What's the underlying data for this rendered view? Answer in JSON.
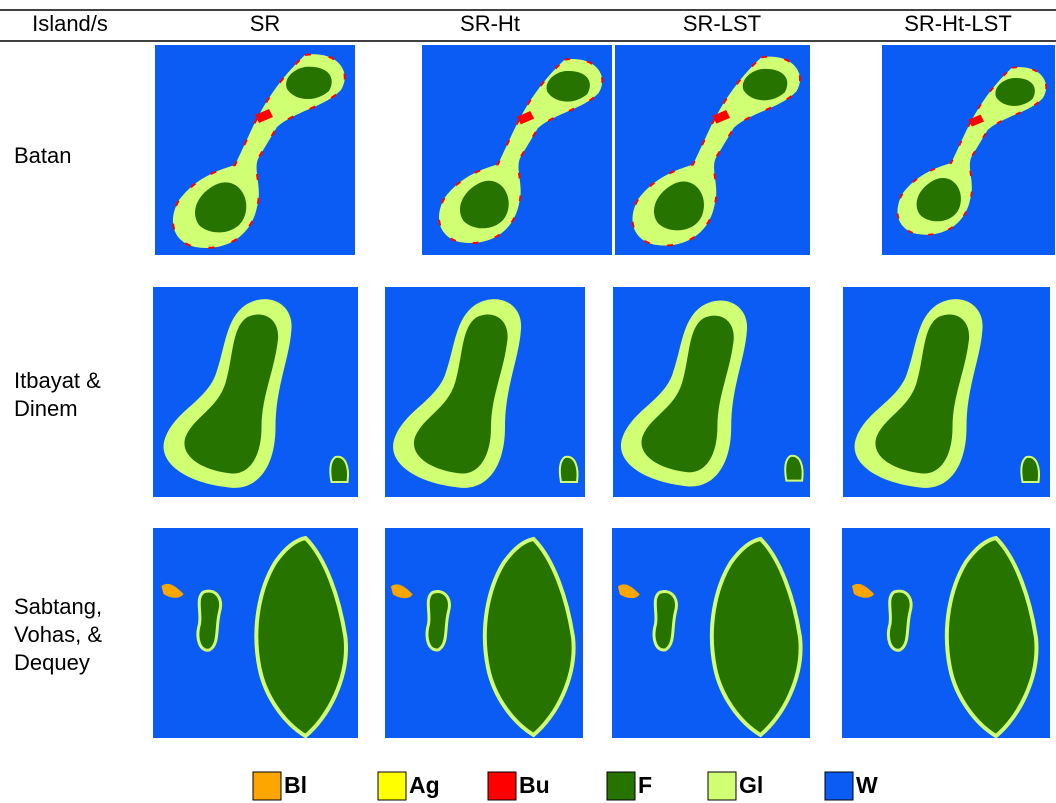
{
  "header": {
    "columns": [
      "Island/s",
      "SR",
      "SR-Ht",
      "SR-LST",
      "SR-Ht-LST"
    ]
  },
  "rows": [
    {
      "label_lines": [
        "Batan"
      ]
    },
    {
      "label_lines": [
        "Itbayat &",
        "Dinem"
      ]
    },
    {
      "label_lines": [
        "Sabtang,",
        "Vohas, &",
        "Dequey"
      ]
    }
  ],
  "legend": [
    {
      "label": "Bl",
      "color": "#ffa500"
    },
    {
      "label": "Ag",
      "color": "#ffff00"
    },
    {
      "label": "Bu",
      "color": "#ff0000"
    },
    {
      "label": "F",
      "color": "#267300"
    },
    {
      "label": "Gl",
      "color": "#d1ff73"
    },
    {
      "label": "W",
      "color": "#0a5cf5"
    }
  ]
}
